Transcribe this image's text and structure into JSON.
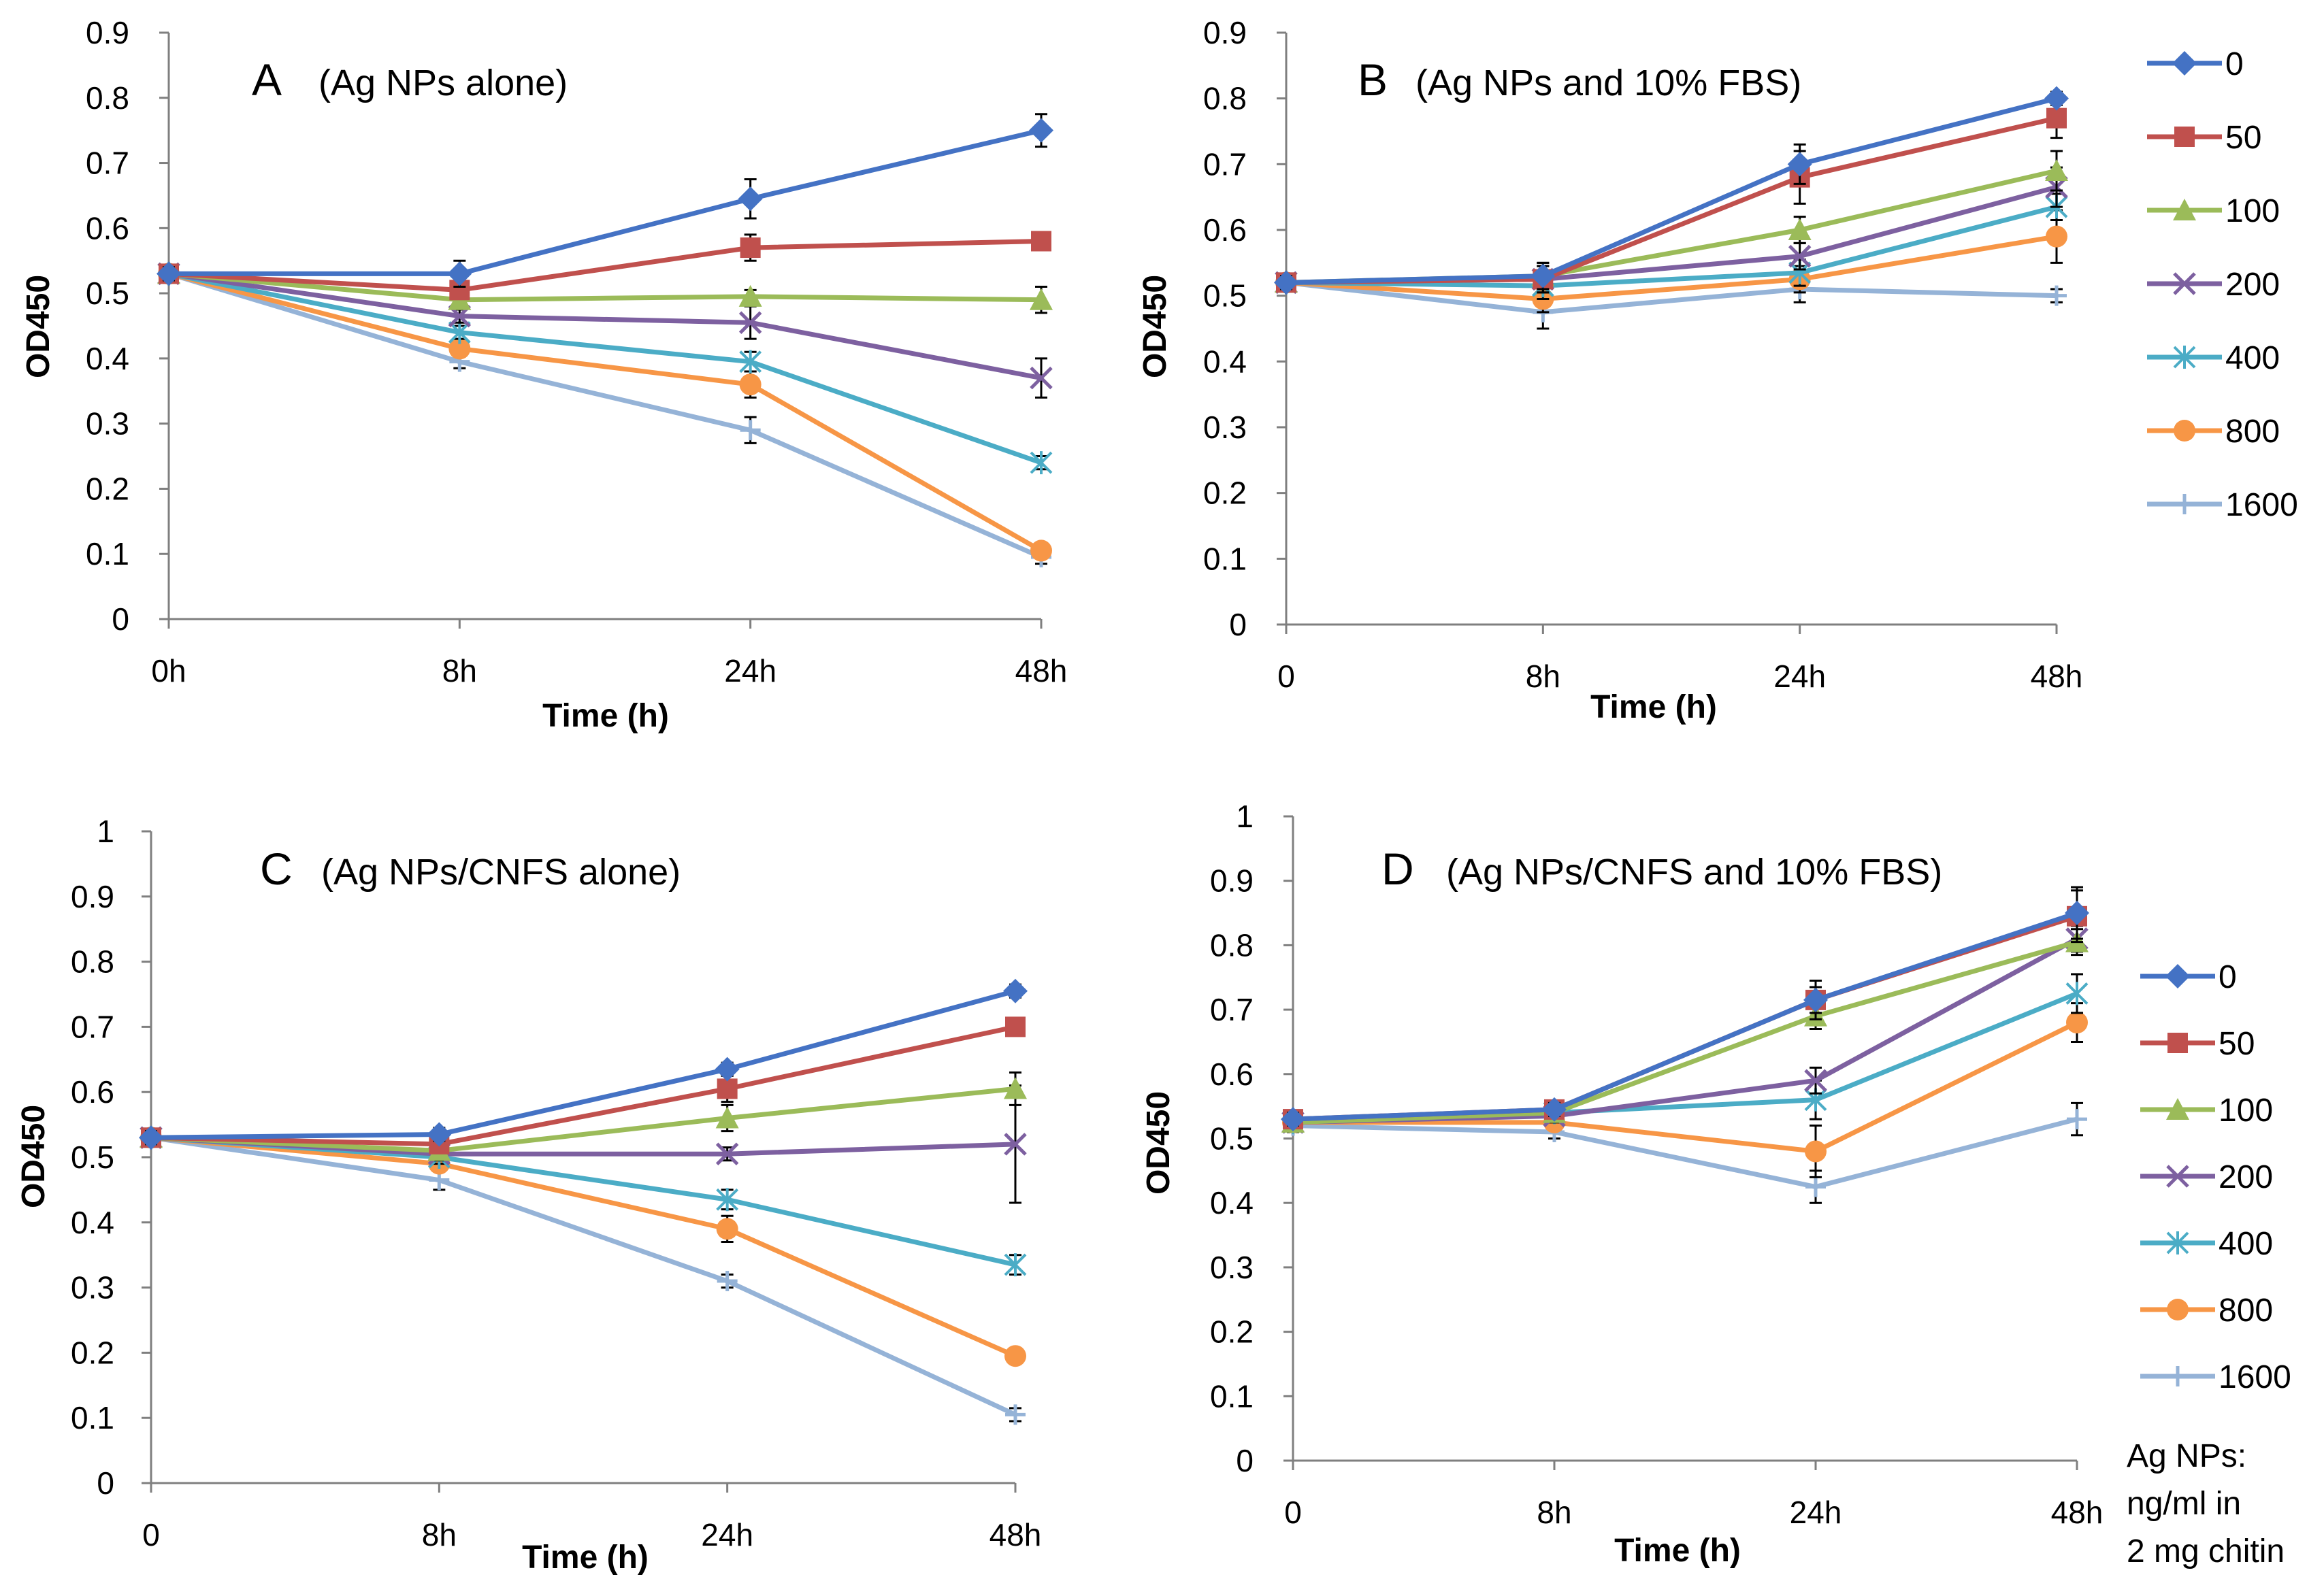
{
  "figure": {
    "legend_note": [
      "Ag NPs:",
      "ng/ml in",
      "2 mg chitin"
    ]
  },
  "series_styles": [
    {
      "name": "0",
      "color": "#4472C4",
      "marker": "diamond"
    },
    {
      "name": "50",
      "color": "#C0504D",
      "marker": "square"
    },
    {
      "name": "100",
      "color": "#9BBB59",
      "marker": "triangle"
    },
    {
      "name": "200",
      "color": "#7D60A0",
      "marker": "x"
    },
    {
      "name": "400",
      "color": "#4BACC6",
      "marker": "star"
    },
    {
      "name": "800",
      "color": "#F79646",
      "marker": "circle"
    },
    {
      "name": "1600",
      "color": "#95B3D7",
      "marker": "plus"
    }
  ],
  "chart_data": [
    {
      "type": "line",
      "letter": "A",
      "title": "(Ag NPs alone)",
      "xlabel": "Time (h)",
      "ylabel": "OD450",
      "categories": [
        "0h",
        "8h",
        "24h",
        "48h"
      ],
      "ylim": [
        0,
        0.9
      ],
      "yticks": [
        "0",
        "0.1",
        "0.2",
        "0.3",
        "0.4",
        "0.5",
        "0.6",
        "0.7",
        "0.8",
        "0.9"
      ],
      "series": [
        {
          "name": "0",
          "values": [
            0.53,
            0.53,
            0.645,
            0.75
          ],
          "errors": [
            0.01,
            0.02,
            0.03,
            0.025
          ]
        },
        {
          "name": "50",
          "values": [
            0.53,
            0.505,
            0.57,
            0.58
          ],
          "errors": [
            0.01,
            0.01,
            0.02,
            0.01
          ]
        },
        {
          "name": "100",
          "values": [
            0.53,
            0.49,
            0.495,
            0.49
          ],
          "errors": [
            0.01,
            0.01,
            0.01,
            0.02
          ]
        },
        {
          "name": "200",
          "values": [
            0.53,
            0.465,
            0.455,
            0.37
          ],
          "errors": [
            0.01,
            0.01,
            0.025,
            0.03
          ]
        },
        {
          "name": "400",
          "values": [
            0.53,
            0.44,
            0.395,
            0.24
          ],
          "errors": [
            0.01,
            0.01,
            0.015,
            0.01
          ]
        },
        {
          "name": "800",
          "values": [
            0.53,
            0.415,
            0.36,
            0.105
          ],
          "errors": [
            0.01,
            0.01,
            0.02,
            0.01
          ]
        },
        {
          "name": "1600",
          "values": [
            0.53,
            0.395,
            0.29,
            0.095
          ],
          "errors": [
            0.01,
            0.01,
            0.02,
            0.01
          ]
        }
      ]
    },
    {
      "type": "line",
      "letter": "B",
      "title": "(Ag NPs and 10% FBS)",
      "xlabel": "Time (h)",
      "ylabel": "OD450",
      "categories": [
        "0",
        "8h",
        "24h",
        "48h"
      ],
      "ylim": [
        0,
        0.9
      ],
      "yticks": [
        "0",
        "0.1",
        "0.2",
        "0.3",
        "0.4",
        "0.5",
        "0.6",
        "0.7",
        "0.8",
        "0.9"
      ],
      "series": [
        {
          "name": "0",
          "values": [
            0.52,
            0.53,
            0.7,
            0.8
          ],
          "errors": [
            0.01,
            0.02,
            0.03,
            0.01
          ]
        },
        {
          "name": "50",
          "values": [
            0.52,
            0.525,
            0.68,
            0.77
          ],
          "errors": [
            0.01,
            0.02,
            0.04,
            0.03
          ]
        },
        {
          "name": "100",
          "values": [
            0.52,
            0.53,
            0.6,
            0.69
          ],
          "errors": [
            0.01,
            0.02,
            0.02,
            0.03
          ]
        },
        {
          "name": "200",
          "values": [
            0.52,
            0.525,
            0.56,
            0.665
          ],
          "errors": [
            0.01,
            0.02,
            0.02,
            0.03
          ]
        },
        {
          "name": "400",
          "values": [
            0.52,
            0.515,
            0.535,
            0.635
          ],
          "errors": [
            0.01,
            0.02,
            0.02,
            0.02
          ]
        },
        {
          "name": "800",
          "values": [
            0.52,
            0.495,
            0.525,
            0.59
          ],
          "errors": [
            0.01,
            0.02,
            0.02,
            0.04
          ]
        },
        {
          "name": "1600",
          "values": [
            0.52,
            0.475,
            0.51,
            0.5
          ],
          "errors": [
            0.01,
            0.025,
            0.02,
            0.01
          ]
        }
      ]
    },
    {
      "type": "line",
      "letter": "C",
      "title": "(Ag NPs/CNFS alone)",
      "xlabel": "Time (h)",
      "ylabel": "OD450",
      "categories": [
        "0",
        "8h",
        "24h",
        "48h"
      ],
      "ylim": [
        0,
        1
      ],
      "yticks": [
        "0",
        "0.1",
        "0.2",
        "0.3",
        "0.4",
        "0.5",
        "0.6",
        "0.7",
        "0.8",
        "0.9",
        "1"
      ],
      "series": [
        {
          "name": "0",
          "values": [
            0.53,
            0.535,
            0.635,
            0.755
          ],
          "errors": [
            0.01,
            0.01,
            0.01,
            0.01
          ]
        },
        {
          "name": "50",
          "values": [
            0.53,
            0.52,
            0.605,
            0.7
          ],
          "errors": [
            0.01,
            0.01,
            0.02,
            0.01
          ]
        },
        {
          "name": "100",
          "values": [
            0.53,
            0.51,
            0.56,
            0.605
          ],
          "errors": [
            0.01,
            0.01,
            0.02,
            0.025
          ]
        },
        {
          "name": "200",
          "values": [
            0.53,
            0.505,
            0.505,
            0.52
          ],
          "errors": [
            0.01,
            0.01,
            0.01,
            0.09
          ]
        },
        {
          "name": "400",
          "values": [
            0.53,
            0.5,
            0.435,
            0.335
          ],
          "errors": [
            0.01,
            0.01,
            0.015,
            0.015
          ]
        },
        {
          "name": "800",
          "values": [
            0.53,
            0.49,
            0.39,
            0.195
          ],
          "errors": [
            0.01,
            0.01,
            0.02,
            0.01
          ]
        },
        {
          "name": "1600",
          "values": [
            0.53,
            0.465,
            0.31,
            0.105
          ],
          "errors": [
            0.01,
            0.015,
            0.01,
            0.01
          ]
        }
      ]
    },
    {
      "type": "line",
      "letter": "D",
      "title": "(Ag NPs/CNFS and 10% FBS)",
      "xlabel": "Time (h)",
      "ylabel": "OD450",
      "categories": [
        "0",
        "8h",
        "24h",
        "48h"
      ],
      "ylim": [
        0,
        1
      ],
      "yticks": [
        "0",
        "0.1",
        "0.2",
        "0.3",
        "0.4",
        "0.5",
        "0.6",
        "0.7",
        "0.8",
        "0.9",
        "1"
      ],
      "series": [
        {
          "name": "0",
          "values": [
            0.53,
            0.545,
            0.715,
            0.85
          ],
          "errors": [
            0.01,
            0.01,
            0.02,
            0.04
          ]
        },
        {
          "name": "50",
          "values": [
            0.53,
            0.545,
            0.715,
            0.845
          ],
          "errors": [
            0.01,
            0.01,
            0.03,
            0.04
          ]
        },
        {
          "name": "100",
          "values": [
            0.525,
            0.54,
            0.69,
            0.805
          ],
          "errors": [
            0.01,
            0.01,
            0.02,
            0.02
          ]
        },
        {
          "name": "200",
          "values": [
            0.525,
            0.535,
            0.59,
            0.81
          ],
          "errors": [
            0.01,
            0.01,
            0.02,
            0.02
          ]
        },
        {
          "name": "400",
          "values": [
            0.525,
            0.54,
            0.56,
            0.725
          ],
          "errors": [
            0.01,
            0.01,
            0.03,
            0.03
          ]
        },
        {
          "name": "800",
          "values": [
            0.525,
            0.525,
            0.48,
            0.68
          ],
          "errors": [
            0.01,
            0.01,
            0.04,
            0.03
          ]
        },
        {
          "name": "1600",
          "values": [
            0.52,
            0.51,
            0.425,
            0.53
          ],
          "errors": [
            0.01,
            0.01,
            0.025,
            0.025
          ]
        }
      ]
    }
  ]
}
